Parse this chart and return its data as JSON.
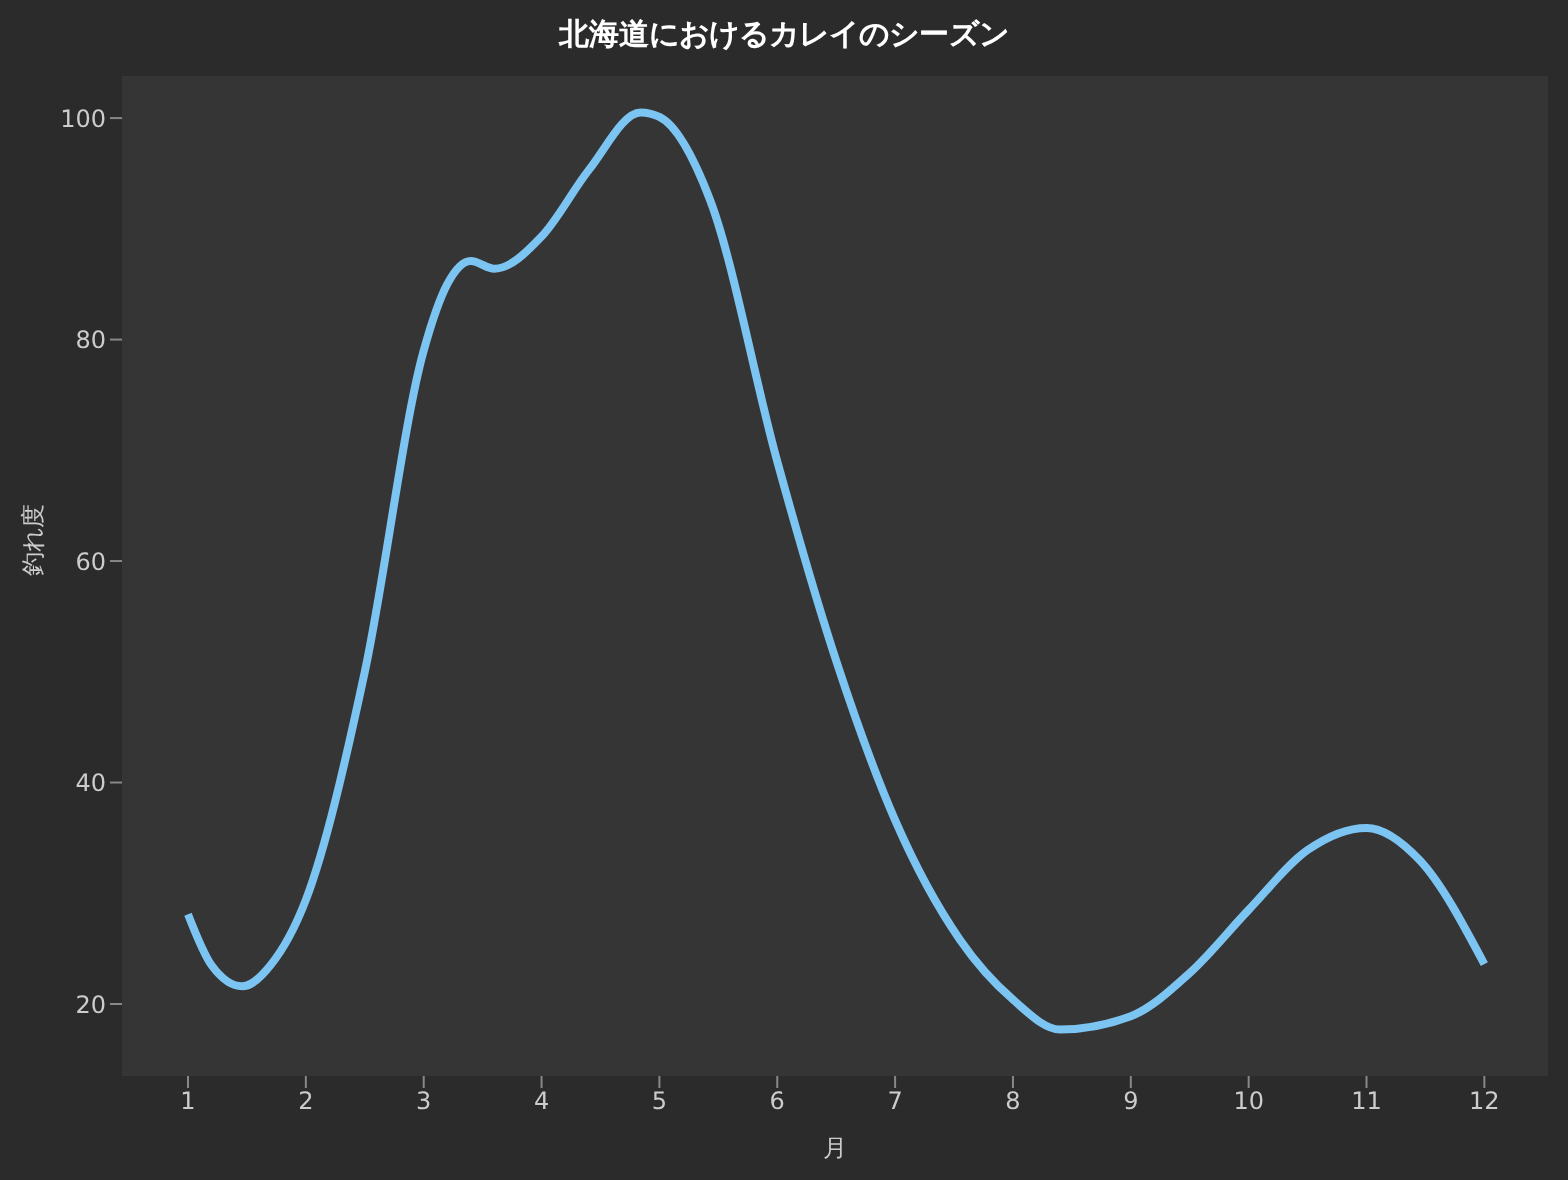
{
  "chart_data": {
    "type": "line",
    "title": "北海道におけるカレイのシーズン",
    "xlabel": "月",
    "ylabel": "釣れ度",
    "x": [
      1,
      1.2,
      1.46,
      1.7,
      2,
      2.5,
      3,
      3.2,
      3.4,
      3.6,
      4,
      4.4,
      4.84,
      5,
      5.43,
      6,
      6.5,
      7,
      7.55,
      8,
      8.4,
      9,
      9.5,
      10,
      10.5,
      11,
      11.45,
      12
    ],
    "values": [
      28.1,
      23.5,
      21.6,
      23.5,
      29.4,
      50,
      79,
      85,
      87.1,
      86.4,
      89.3,
      95.3,
      100.5,
      100.1,
      92.6,
      69,
      51,
      36.6,
      25.8,
      20.4,
      17.7,
      18.9,
      22.8,
      28.5,
      33.9,
      35.9,
      33,
      23.6
    ],
    "color": "#7cc4f2",
    "xlim": [
      0.44,
      12.54
    ],
    "ylim": [
      13.5,
      103.8
    ],
    "xticks": [
      1,
      2,
      3,
      4,
      5,
      6,
      7,
      8,
      9,
      10,
      11,
      12
    ],
    "yticks": [
      20,
      40,
      60,
      80,
      100
    ],
    "grid": false,
    "legend": false,
    "marker": "none",
    "line_style": "solid"
  }
}
